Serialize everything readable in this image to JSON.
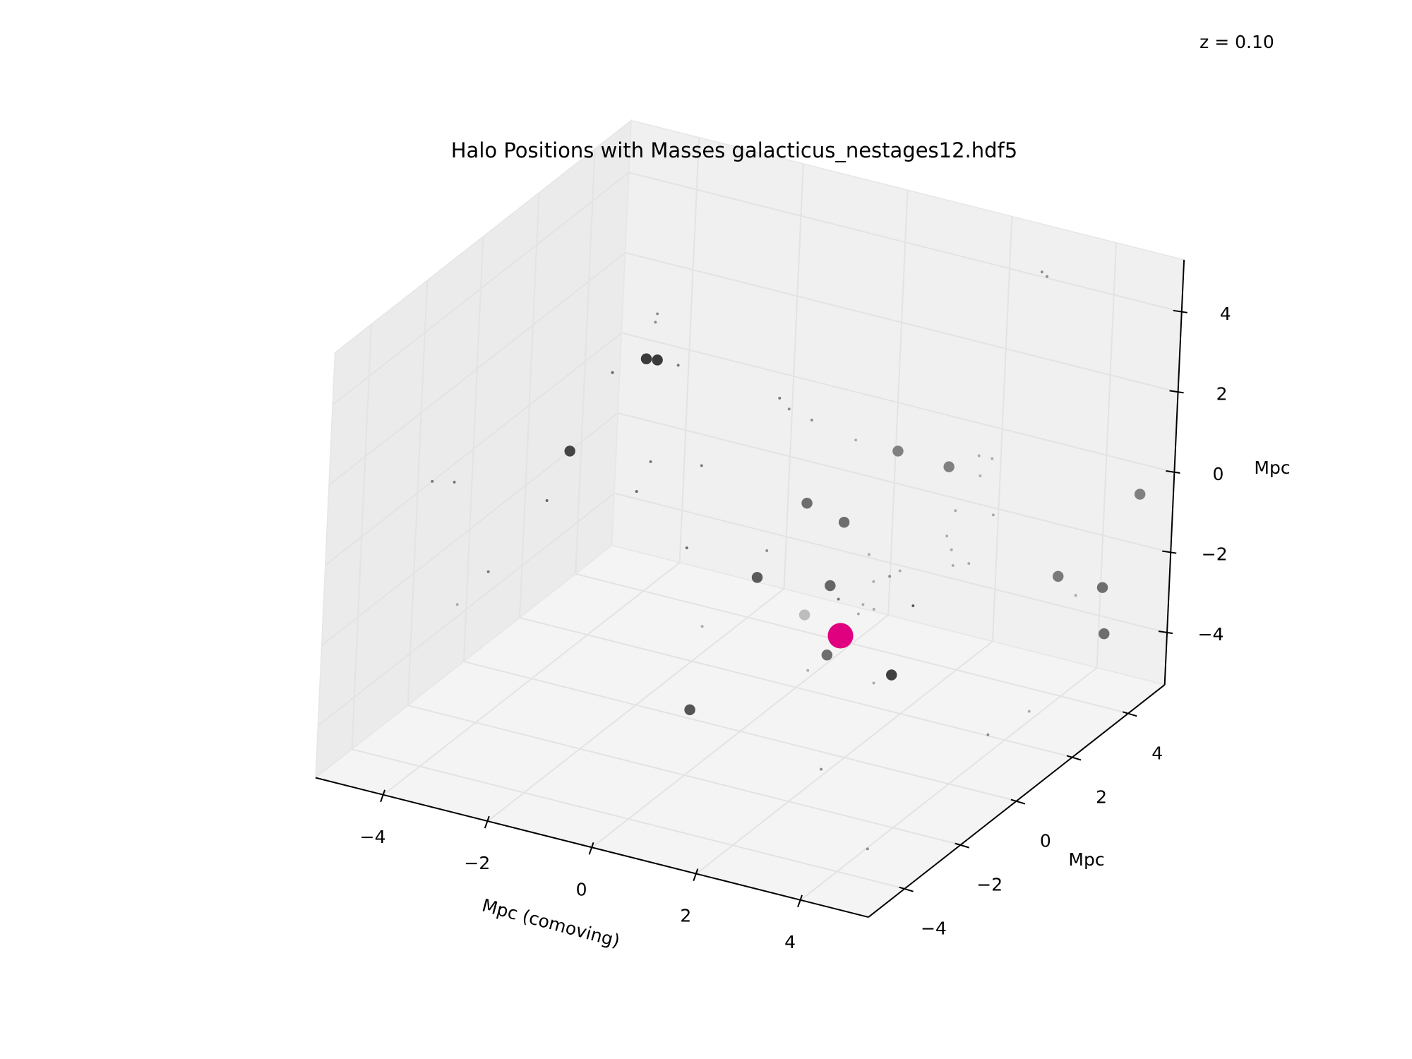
{
  "chart_data": {
    "type": "scatter3d",
    "title": "Halo Positions with Masses galacticus_nestages12.hdf5",
    "annotation": "z = 0.10",
    "xlabel": "Mpc (comoving)",
    "ylabel": "Mpc",
    "zlabel": "Mpc",
    "xlim": [
      -5.3,
      5.3
    ],
    "ylim": [
      -5.3,
      5.3
    ],
    "zlim": [
      -5.3,
      5.3
    ],
    "xticks": [
      {
        "value": -4,
        "label": "−4"
      },
      {
        "value": -2,
        "label": "−2"
      },
      0,
      2,
      4
    ],
    "yticks": [
      {
        "value": -4,
        "label": "−4"
      },
      {
        "value": -2,
        "label": "−2"
      },
      0,
      2,
      4
    ],
    "zticks": [
      {
        "value": -4,
        "label": "−4"
      },
      {
        "value": -2,
        "label": "−2"
      },
      0,
      2,
      4
    ],
    "grid": true,
    "x": [
      -2.1,
      -1.89,
      -3.47,
      2.75,
      3.73,
      4.82,
      1.07,
      1.79,
      0.19,
      1.58,
      3.85,
      4.7,
      4.77,
      1.12,
      1.58,
      2.82,
      0.56,
      1.93,
      -1.96,
      -1.93,
      -2.73,
      -1.49,
      0.46,
      0.65,
      1.09,
      1.94,
      4.29,
      3.52,
      4.33,
      2.77,
      2.87,
      -1.93,
      -0.96,
      -2.17,
      -2.33,
      -4.52,
      -4.1,
      -3.38,
      -3.94,
      -1.17,
      0.35,
      3.89,
      3.59,
      3.75,
      3.85,
      4.19,
      3.89,
      2.29,
      2.89,
      2.7,
      2.4,
      3.17,
      2.43,
      2.22,
      1.75,
      -0.81,
      1.23,
      2.49,
      4.2,
      4.44,
      4.19,
      3.1,
      4.56,
      2.14,
      1.82
    ],
    "y": [
      0,
      0,
      0,
      0,
      0,
      5,
      0,
      0,
      0,
      0,
      4,
      4,
      4,
      0,
      0,
      0,
      -3,
      0,
      0,
      0,
      0,
      0,
      0,
      0,
      0,
      0,
      0,
      2,
      0,
      5,
      5,
      0,
      0,
      0,
      -3,
      -3,
      -3,
      -3,
      -3,
      0,
      0,
      0,
      2,
      0,
      0,
      0,
      0,
      0,
      0,
      0,
      0,
      0,
      0,
      0,
      0,
      0,
      0,
      0,
      4,
      2,
      1,
      -3,
      -4,
      0,
      0
    ],
    "z": [
      3.3,
      3.34,
      0.55,
      2.59,
      2.52,
      -0.54,
      0.74,
      0.5,
      -1.4,
      -1.15,
      -2.36,
      -2.36,
      -3.49,
      -2.03,
      -2.88,
      -2.97,
      -2.94,
      -2.33,
      4.26,
      4.48,
      2.75,
      3.34,
      3.16,
      2.95,
      2.82,
      2.6,
      2.98,
      1.56,
      2.49,
      4.33,
      4.25,
      0.79,
      1.01,
      -0.03,
      1.33,
      1.09,
      1.21,
      -0.79,
      -1.79,
      -1.11,
      -0.68,
      1.48,
      0.18,
      0.8,
      0.49,
      0.26,
      0.11,
      -0.14,
      -0.35,
      -0.55,
      -0.78,
      -1.13,
      -1.46,
      -1.41,
      -1.43,
      -2.95,
      -3.38,
      -3.28,
      -2.72,
      -4.44,
      -4.56,
      -3.59,
      -4.55,
      -1.67,
      -2.32
    ],
    "sizes": [
      31,
      31,
      31,
      31,
      31,
      31,
      31,
      31,
      31,
      31,
      31,
      31,
      31,
      31,
      31,
      31,
      31,
      31,
      2,
      2,
      2,
      2,
      2,
      2,
      2,
      2,
      2,
      2,
      2,
      2,
      2,
      2,
      2,
      2,
      2,
      2,
      2,
      2,
      2,
      2,
      2,
      2,
      2,
      2,
      2,
      2,
      2,
      2,
      2,
      2,
      2,
      2,
      2,
      2,
      2,
      2,
      2,
      2,
      2,
      2,
      2,
      2,
      2,
      2,
      169
    ],
    "colors": [
      "#3a3a3a",
      "#3a3a3a",
      "#444444",
      "#808080",
      "#808080",
      "#808080",
      "#6e6e6e",
      "#6e6e6e",
      "#5a5a5a",
      "#666666",
      "#7a7a7a",
      "#6e6e6e",
      "#6e6e6e",
      "#bdbdbd",
      "#6e6e6e",
      "#404040",
      "#555555",
      "#3a3a3a",
      "#8c8c8c",
      "#8c8c8c",
      "#666666",
      "#777777",
      "#777777",
      "#8c8c8c",
      "#8c8c8c",
      "#aaaaaa",
      "#aaaaaa",
      "#aaaaaa",
      "#aaaaaa",
      "#8c8c8c",
      "#8c8c8c",
      "#777777",
      "#777777",
      "#666666",
      "#666666",
      "#777777",
      "#777777",
      "#777777",
      "#aaaaaa",
      "#666666",
      "#8c8c8c",
      "#aaaaaa",
      "#aaaaaa",
      "#aaaaaa",
      "#aaaaaa",
      "#aaaaaa",
      "#aaaaaa",
      "#aaaaaa",
      "#aaaaaa",
      "#8c8c8c",
      "#aaaaaa",
      "#555555",
      "#aaaaaa",
      "#aaaaaa",
      "#777777",
      "#aaaaaa",
      "#aaaaaa",
      "#aaaaaa",
      "#aaaaaa",
      "#aaaaaa",
      "#8c8c8c",
      "#8c8c8c",
      "#8c8c8c",
      "#aaaaaa",
      "#e0007f"
    ]
  }
}
